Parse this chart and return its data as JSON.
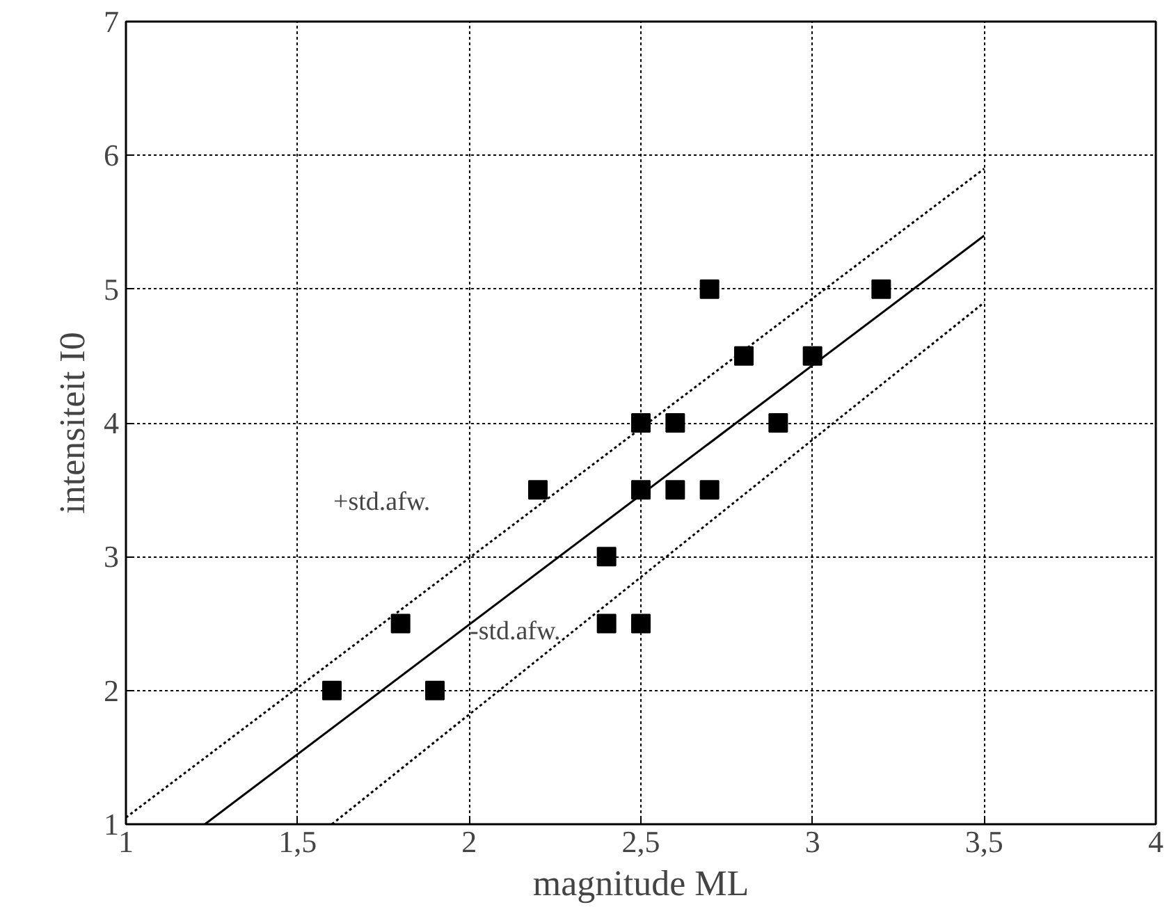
{
  "chart_data": {
    "type": "scatter",
    "xlabel": "magnitude ML",
    "ylabel": "intensiteit I0",
    "xlim": [
      1,
      4
    ],
    "ylim": [
      1,
      7
    ],
    "xticks": [
      1,
      {
        "value": 1.5,
        "label": "1,5"
      },
      2,
      {
        "value": 2.5,
        "label": "2,5"
      },
      3,
      {
        "value": 3.5,
        "label": "3,5"
      },
      4
    ],
    "yticks": [
      1,
      2,
      3,
      4,
      5,
      6,
      7
    ],
    "grid": true,
    "series": [
      {
        "marker": "square",
        "color": "#000000",
        "x": [
          1.6,
          1.8,
          1.9,
          2.2,
          2.4,
          2.4,
          2.5,
          2.5,
          2.5,
          2.6,
          2.6,
          2.7,
          2.7,
          2.8,
          2.9,
          3.0,
          3.2
        ],
        "values": [
          2.0,
          2.5,
          2.0,
          3.5,
          3.0,
          2.5,
          2.5,
          3.5,
          4.0,
          4.0,
          3.5,
          3.5,
          5.0,
          4.5,
          4.0,
          4.5,
          5.0
        ]
      },
      {
        "type": "line",
        "marker": "none",
        "color": "#000000",
        "line_style": "solid",
        "x": [
          1.23,
          3.5
        ],
        "values": [
          1.0,
          5.4
        ]
      },
      {
        "type": "line",
        "marker": "none",
        "color": "#000000",
        "line_style": "dotted",
        "x": [
          1.0,
          3.5
        ],
        "values": [
          1.05,
          5.9
        ]
      },
      {
        "type": "line",
        "marker": "none",
        "color": "#000000",
        "line_style": "dotted",
        "x": [
          1.6,
          3.5
        ],
        "values": [
          1.0,
          4.9
        ]
      }
    ],
    "annotations": [
      "+std.afw.",
      "-std.afw."
    ]
  }
}
